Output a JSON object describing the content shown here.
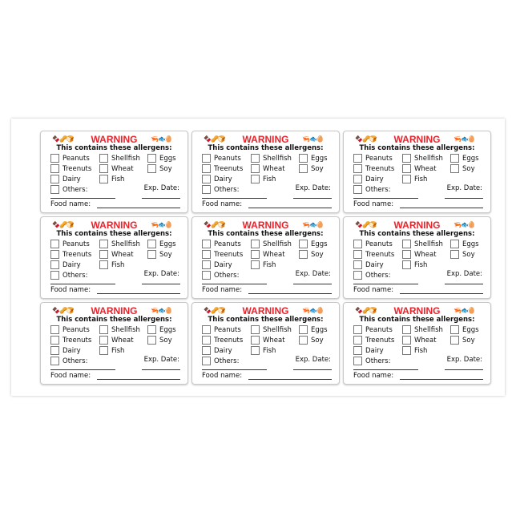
{
  "label": {
    "title": "WARNING",
    "subtitle": "This contains these allergens:",
    "icons_left": "food-icons-left",
    "icons_right": "food-icons-right",
    "allergens": [
      "Peanuts",
      "Shellfish",
      "Eggs",
      "Treenuts",
      "Wheat",
      "Soy",
      "Dairy",
      "Fish"
    ],
    "others_label": "Others:",
    "exp_date_label": "Exp. Date:",
    "food_name_label": "Food name:"
  },
  "label_count": 9,
  "colors": {
    "warning": "#e8232b"
  }
}
